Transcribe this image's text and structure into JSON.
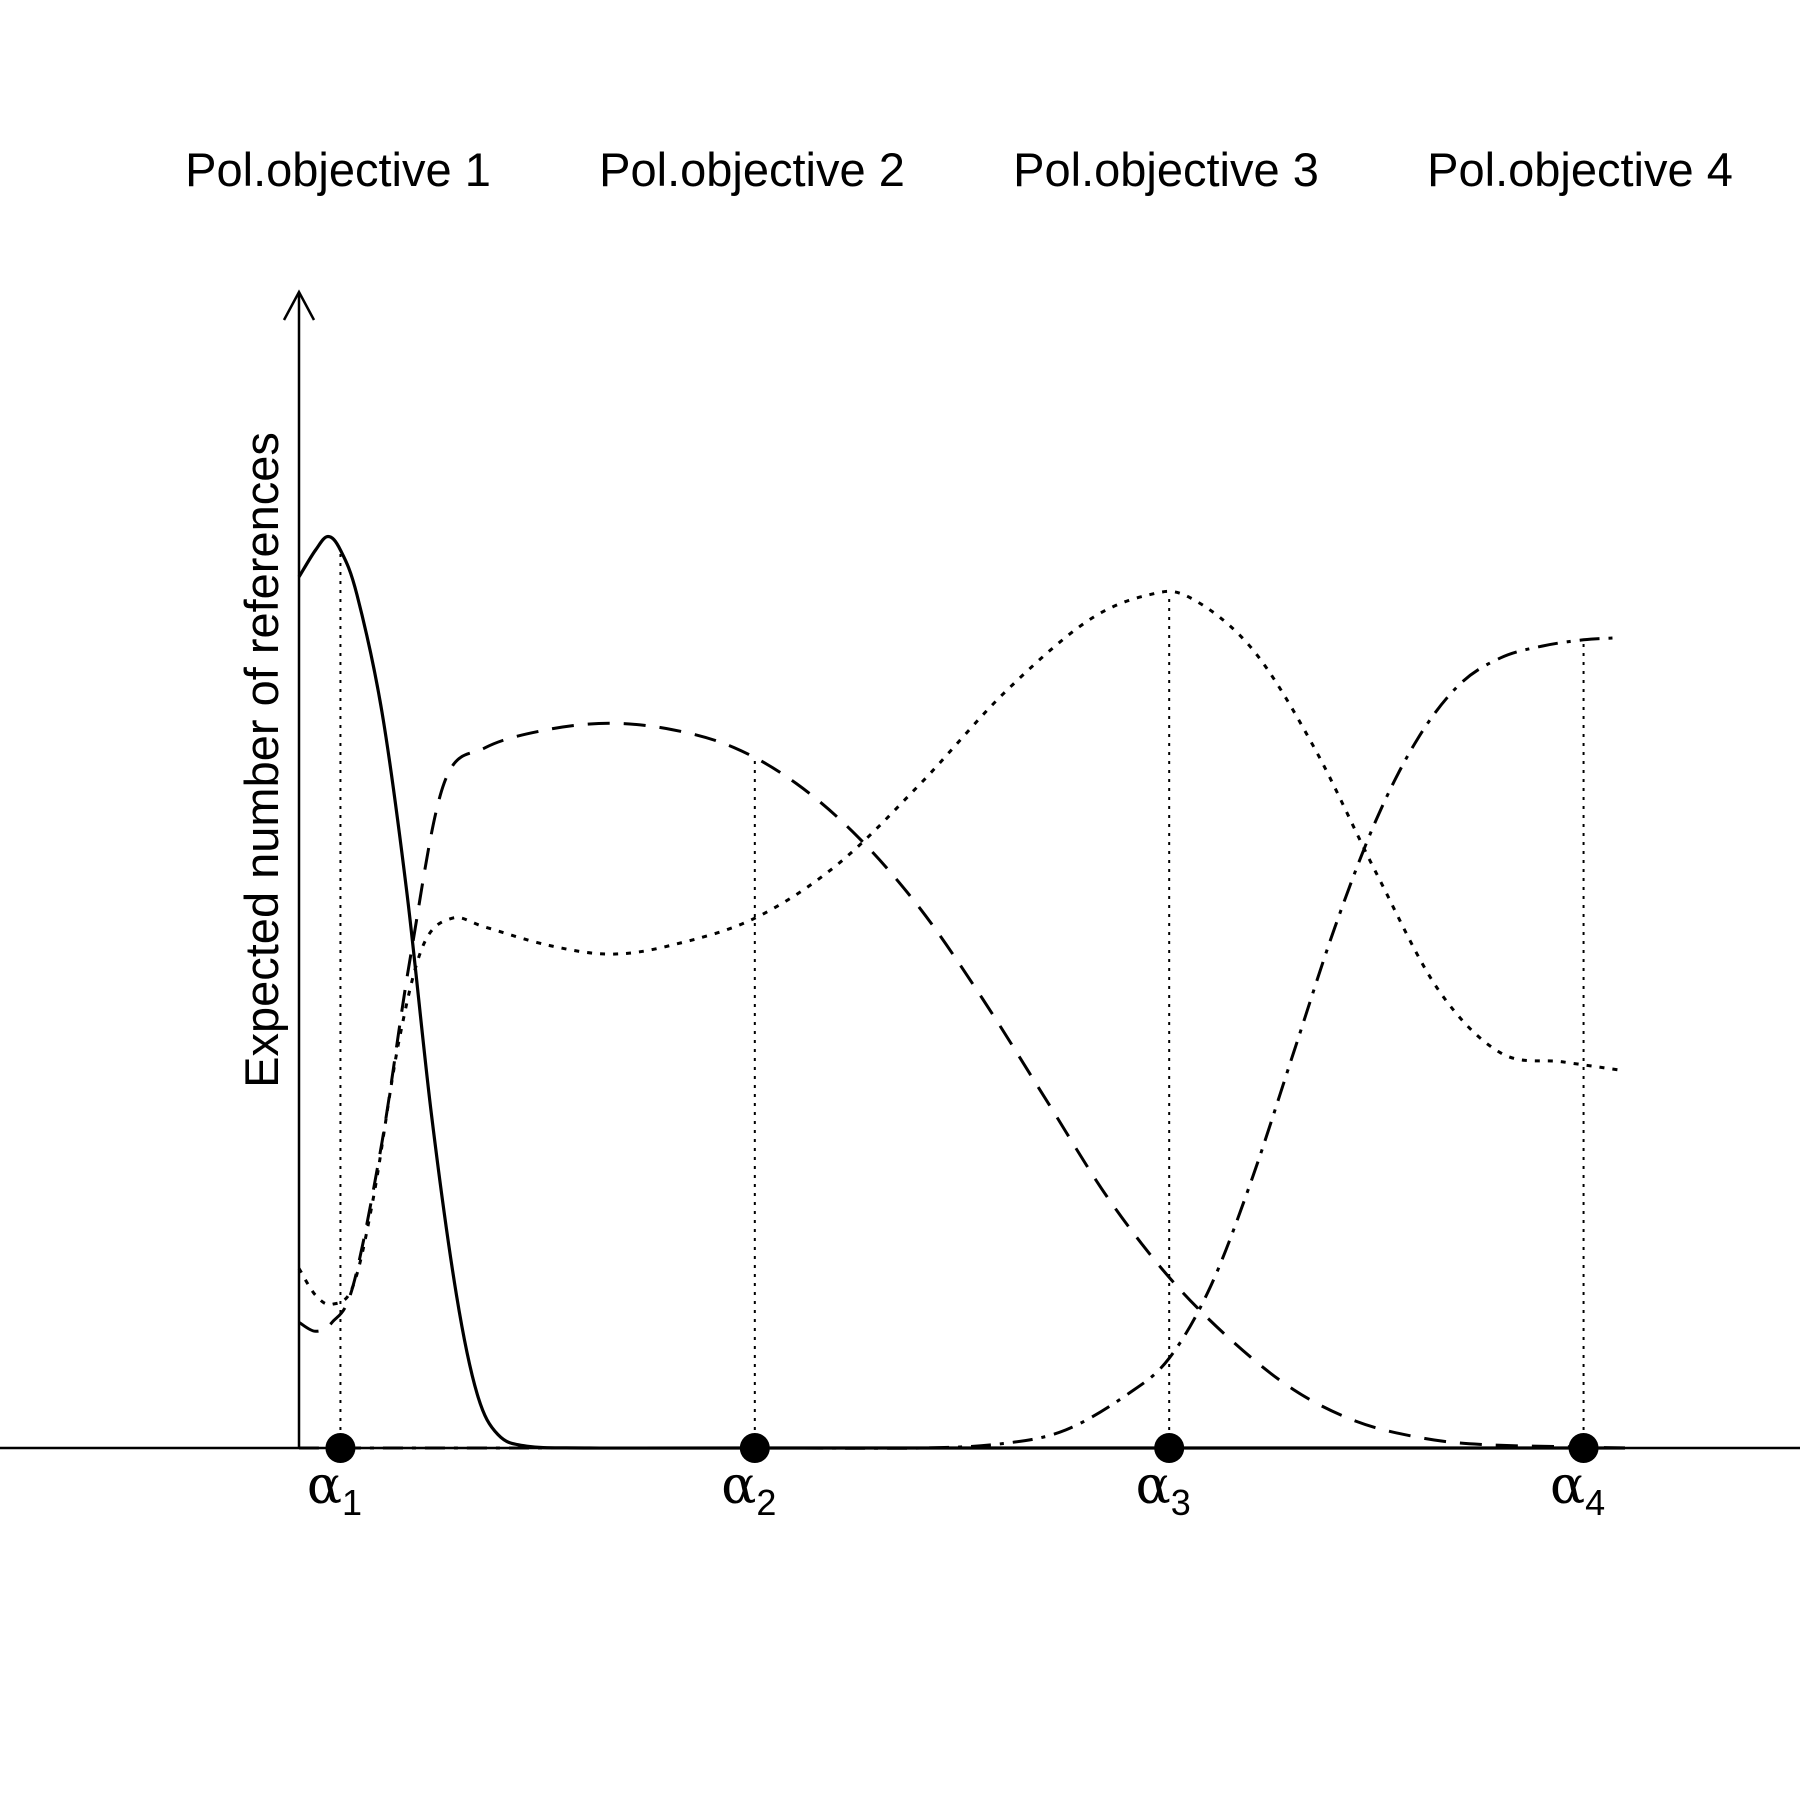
{
  "chart_data": {
    "type": "line",
    "title": "",
    "xlabel": "",
    "ylabel": "Expected number of references",
    "objective_labels": [
      "Pol.objective 1",
      "Pol.objective 2",
      "Pol.objective 3",
      "Pol.objective 4"
    ],
    "ticks": [
      {
        "base": "α",
        "sub": "1",
        "x": 1
      },
      {
        "base": "α",
        "sub": "2",
        "x": 2
      },
      {
        "base": "α",
        "sub": "3",
        "x": 3
      },
      {
        "base": "α",
        "sub": "4",
        "x": 4
      }
    ],
    "xlim": [
      0.9,
      4.1
    ],
    "ylim": [
      0,
      1
    ],
    "grid": false,
    "series": [
      {
        "style": "solid",
        "points": [
          [
            0.9,
            0.97
          ],
          [
            0.94,
            1.0
          ],
          [
            0.97,
            1.015
          ],
          [
            1.0,
            1.0
          ],
          [
            1.04,
            0.95
          ],
          [
            1.1,
            0.82
          ],
          [
            1.16,
            0.62
          ],
          [
            1.22,
            0.37
          ],
          [
            1.28,
            0.17
          ],
          [
            1.33,
            0.06
          ],
          [
            1.38,
            0.015
          ],
          [
            1.45,
            0.002
          ],
          [
            1.6,
            0.0
          ],
          [
            2.0,
            0.0
          ],
          [
            3.0,
            0.0
          ],
          [
            4.1,
            0.0
          ]
        ]
      },
      {
        "style": "dashed",
        "points": [
          [
            0.9,
            0.14
          ],
          [
            0.94,
            0.13
          ],
          [
            0.98,
            0.14
          ],
          [
            1.03,
            0.18
          ],
          [
            1.1,
            0.34
          ],
          [
            1.17,
            0.55
          ],
          [
            1.25,
            0.74
          ],
          [
            1.35,
            0.78
          ],
          [
            1.5,
            0.8
          ],
          [
            1.65,
            0.807
          ],
          [
            1.8,
            0.8
          ],
          [
            1.95,
            0.78
          ],
          [
            2.1,
            0.74
          ],
          [
            2.25,
            0.68
          ],
          [
            2.4,
            0.6
          ],
          [
            2.55,
            0.5
          ],
          [
            2.7,
            0.39
          ],
          [
            2.85,
            0.28
          ],
          [
            3.0,
            0.19
          ],
          [
            3.15,
            0.12
          ],
          [
            3.3,
            0.065
          ],
          [
            3.45,
            0.03
          ],
          [
            3.6,
            0.012
          ],
          [
            3.75,
            0.004
          ],
          [
            4.0,
            0.001
          ],
          [
            4.1,
            0.0
          ]
        ]
      },
      {
        "style": "dotted",
        "points": [
          [
            0.9,
            0.2
          ],
          [
            0.94,
            0.17
          ],
          [
            0.98,
            0.16
          ],
          [
            1.03,
            0.18
          ],
          [
            1.08,
            0.28
          ],
          [
            1.14,
            0.45
          ],
          [
            1.2,
            0.56
          ],
          [
            1.27,
            0.59
          ],
          [
            1.35,
            0.58
          ],
          [
            1.5,
            0.56
          ],
          [
            1.65,
            0.55
          ],
          [
            1.8,
            0.56
          ],
          [
            2.0,
            0.59
          ],
          [
            2.2,
            0.65
          ],
          [
            2.4,
            0.74
          ],
          [
            2.6,
            0.84
          ],
          [
            2.8,
            0.92
          ],
          [
            2.95,
            0.95
          ],
          [
            3.05,
            0.947
          ],
          [
            3.2,
            0.89
          ],
          [
            3.35,
            0.78
          ],
          [
            3.5,
            0.64
          ],
          [
            3.65,
            0.51
          ],
          [
            3.8,
            0.44
          ],
          [
            3.95,
            0.43
          ],
          [
            4.1,
            0.42
          ]
        ]
      },
      {
        "style": "dashdot",
        "points": [
          [
            0.9,
            0.0
          ],
          [
            2.0,
            0.0
          ],
          [
            2.4,
            0.0
          ],
          [
            2.6,
            0.005
          ],
          [
            2.75,
            0.02
          ],
          [
            2.9,
            0.06
          ],
          [
            3.0,
            0.1
          ],
          [
            3.1,
            0.18
          ],
          [
            3.2,
            0.3
          ],
          [
            3.3,
            0.44
          ],
          [
            3.4,
            0.58
          ],
          [
            3.5,
            0.7
          ],
          [
            3.6,
            0.79
          ],
          [
            3.7,
            0.85
          ],
          [
            3.8,
            0.88
          ],
          [
            3.9,
            0.893
          ],
          [
            4.0,
            0.9
          ],
          [
            4.07,
            0.902
          ]
        ]
      }
    ],
    "colors": {
      "line": "#000000",
      "background": "#ffffff"
    }
  }
}
